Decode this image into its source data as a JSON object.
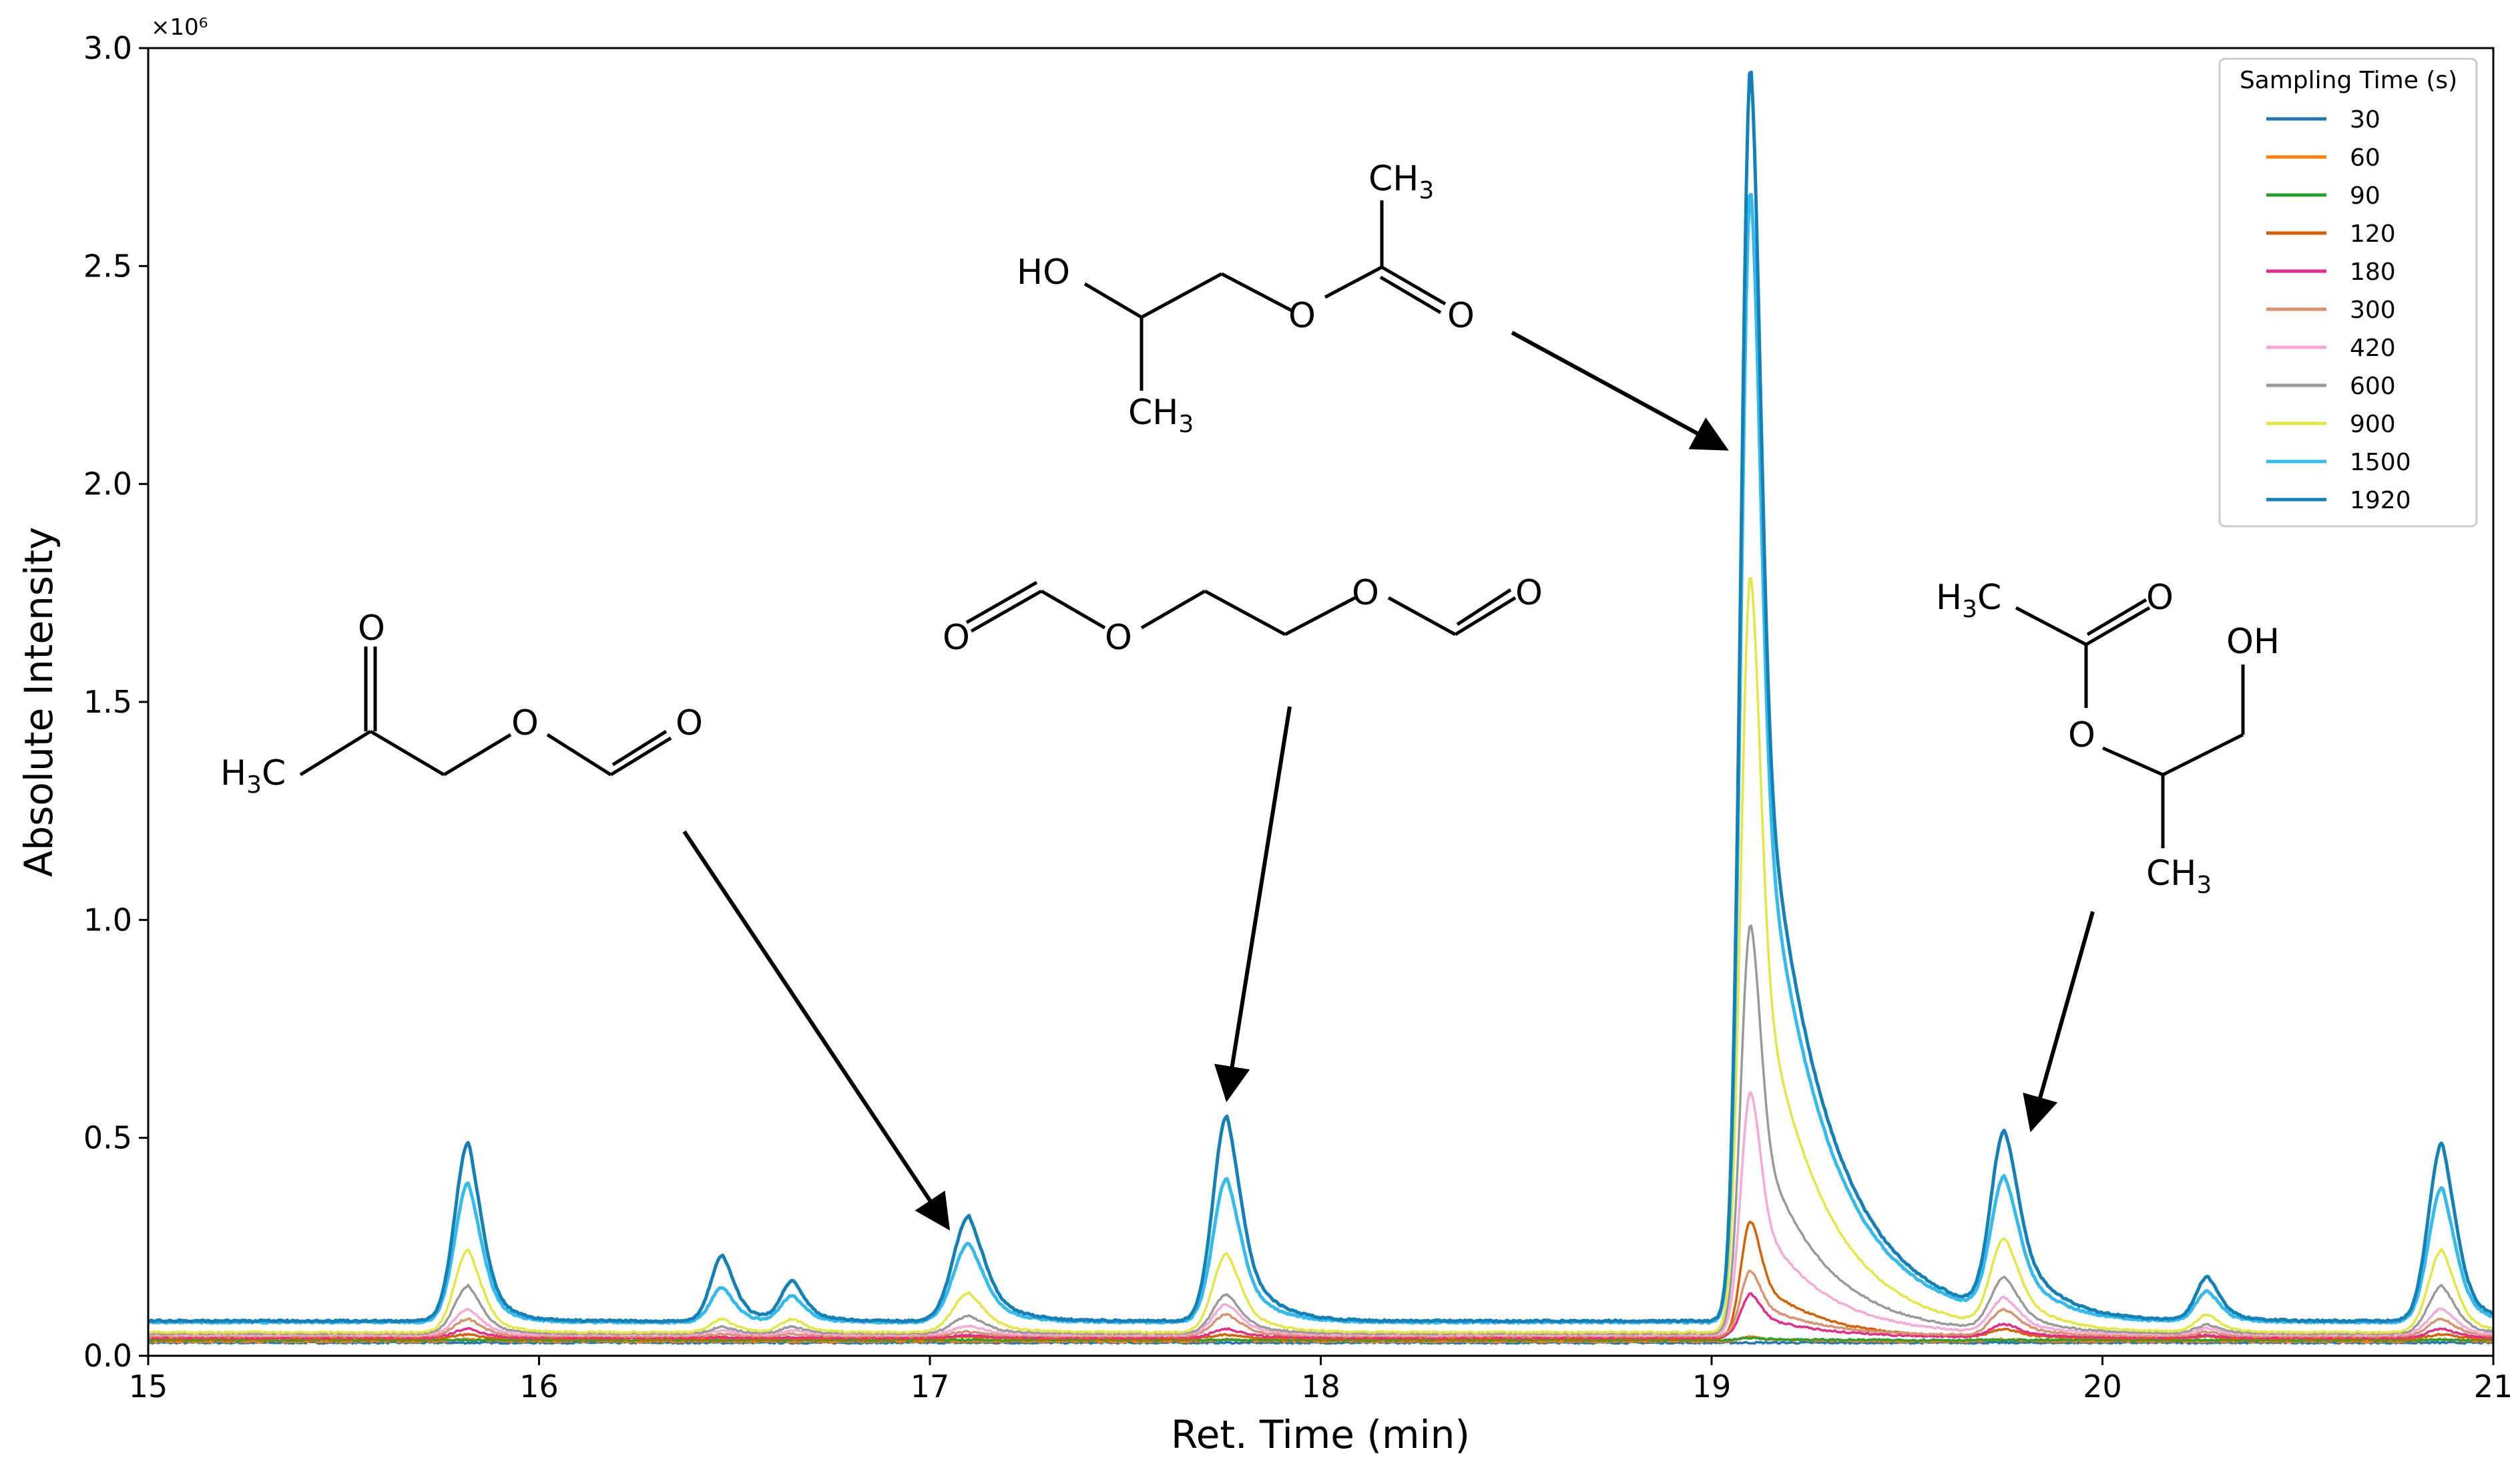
{
  "chart_data": {
    "type": "line",
    "xlabel": "Ret. Time (min)",
    "ylabel": "Absolute Intensity",
    "y_exponent_label": "×10⁶",
    "xlim": [
      15,
      21
    ],
    "ylim": [
      0,
      3.0
    ],
    "x_ticks": [
      "15",
      "16",
      "17",
      "18",
      "19",
      "20",
      "21"
    ],
    "y_ticks": [
      "0.0",
      "0.5",
      "1.0",
      "1.5",
      "2.0",
      "2.5",
      "3.0"
    ],
    "legend": {
      "title": "Sampling Time (s)",
      "position": "top-right"
    },
    "baseline": 0.03,
    "peaks_rt": [
      15.82,
      16.47,
      16.65,
      17.1,
      17.76,
      19.1,
      19.75,
      20.27,
      20.87
    ],
    "series": [
      {
        "name": "30",
        "color": "#1f77b4",
        "heights": [
          0.0,
          0.0,
          0.0,
          0.0,
          0.0,
          0.0,
          0.0,
          0.0,
          0.0
        ]
      },
      {
        "name": "60",
        "color": "#ff7f0e",
        "heights": [
          0.005,
          0.0,
          0.0,
          0.0,
          0.005,
          0.01,
          0.005,
          0.0,
          0.005
        ]
      },
      {
        "name": "90",
        "color": "#2ca02c",
        "heights": [
          0.0,
          0.0,
          0.0,
          0.0,
          0.0,
          0.005,
          0.0,
          0.0,
          0.0
        ]
      },
      {
        "name": "120",
        "color": "#d95f02",
        "heights": [
          0.01,
          0.0,
          0.0,
          0.005,
          0.01,
          0.27,
          0.02,
          0.005,
          0.01
        ]
      },
      {
        "name": "180",
        "color": "#e7298a",
        "heights": [
          0.02,
          0.0,
          0.0,
          0.005,
          0.02,
          0.1,
          0.03,
          0.005,
          0.02
        ]
      },
      {
        "name": "300",
        "color": "#d9926e",
        "heights": [
          0.04,
          0.005,
          0.005,
          0.01,
          0.05,
          0.15,
          0.06,
          0.01,
          0.04
        ]
      },
      {
        "name": "420",
        "color": "#f7a8d6",
        "heights": [
          0.06,
          0.01,
          0.01,
          0.02,
          0.07,
          0.56,
          0.08,
          0.015,
          0.06
        ]
      },
      {
        "name": "600",
        "color": "#999999",
        "heights": [
          0.11,
          0.015,
          0.015,
          0.04,
          0.09,
          0.94,
          0.12,
          0.02,
          0.11
        ]
      },
      {
        "name": "900",
        "color": "#e6e640",
        "heights": [
          0.19,
          0.03,
          0.03,
          0.09,
          0.18,
          1.74,
          0.2,
          0.04,
          0.19
        ]
      },
      {
        "name": "1500",
        "color": "#33bbee",
        "heights": [
          0.32,
          0.08,
          0.06,
          0.18,
          0.33,
          2.6,
          0.31,
          0.07,
          0.31
        ]
      },
      {
        "name": "1920",
        "color": "#1380b8",
        "heights": [
          0.41,
          0.15,
          0.09,
          0.24,
          0.47,
          2.88,
          0.41,
          0.1,
          0.41
        ]
      }
    ]
  },
  "structures": [
    {
      "id": "hydroxyacetone-formate",
      "labels": [
        "O",
        "O",
        "O",
        "H3C"
      ]
    },
    {
      "id": "ethylene-diformate",
      "labels": [
        "O",
        "O",
        "O",
        "O"
      ]
    },
    {
      "id": "hydroxypropyl-acetate-1",
      "labels": [
        "HO",
        "O",
        "O",
        "CH3",
        "CH3"
      ]
    },
    {
      "id": "hydroxypropyl-acetate-2",
      "labels": [
        "H3C",
        "O",
        "O",
        "OH",
        "CH3"
      ]
    }
  ]
}
